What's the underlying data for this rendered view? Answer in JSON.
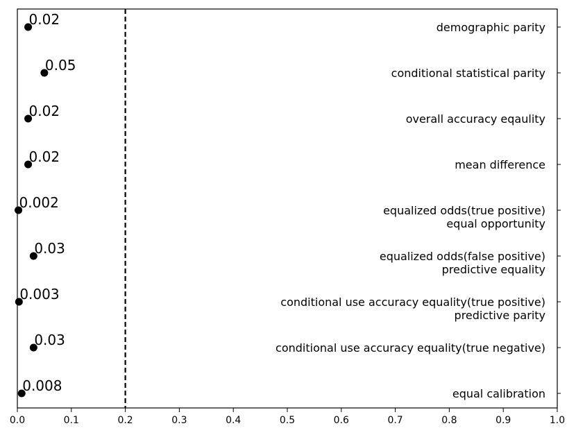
{
  "chart_data": {
    "type": "scatter",
    "xlim": [
      0.0,
      1.0
    ],
    "xticks": [
      0.0,
      0.1,
      0.2,
      0.3,
      0.4,
      0.5,
      0.6,
      0.7,
      0.8,
      0.9,
      1.0
    ],
    "xtick_labels": [
      "0.0",
      "0.1",
      "0.2",
      "0.3",
      "0.4",
      "0.5",
      "0.6",
      "0.7",
      "0.8",
      "0.9",
      "1.0"
    ],
    "threshold": 0.2,
    "threshold_style": "dashed",
    "grid": false,
    "marker_color": "#000000",
    "points": [
      {
        "category": [
          "demographic parity"
        ],
        "value": 0.02,
        "label": "0.02"
      },
      {
        "category": [
          "conditional statistical parity"
        ],
        "value": 0.05,
        "label": "0.05"
      },
      {
        "category": [
          "overall accuracy eqaulity"
        ],
        "value": 0.02,
        "label": "0.02"
      },
      {
        "category": [
          "mean difference"
        ],
        "value": 0.02,
        "label": "0.02"
      },
      {
        "category": [
          "equalized odds(true positive)",
          "equal opportunity"
        ],
        "value": 0.002,
        "label": "0.002"
      },
      {
        "category": [
          "equalized odds(false positive)",
          "predictive equality"
        ],
        "value": 0.03,
        "label": "0.03"
      },
      {
        "category": [
          "conditional use accuracy equality(true positive)",
          "predictive parity"
        ],
        "value": 0.003,
        "label": "0.003"
      },
      {
        "category": [
          "conditional use accuracy equality(true negative)"
        ],
        "value": 0.03,
        "label": "0.03"
      },
      {
        "category": [
          "equal calibration"
        ],
        "value": 0.008,
        "label": "0.008"
      }
    ]
  }
}
